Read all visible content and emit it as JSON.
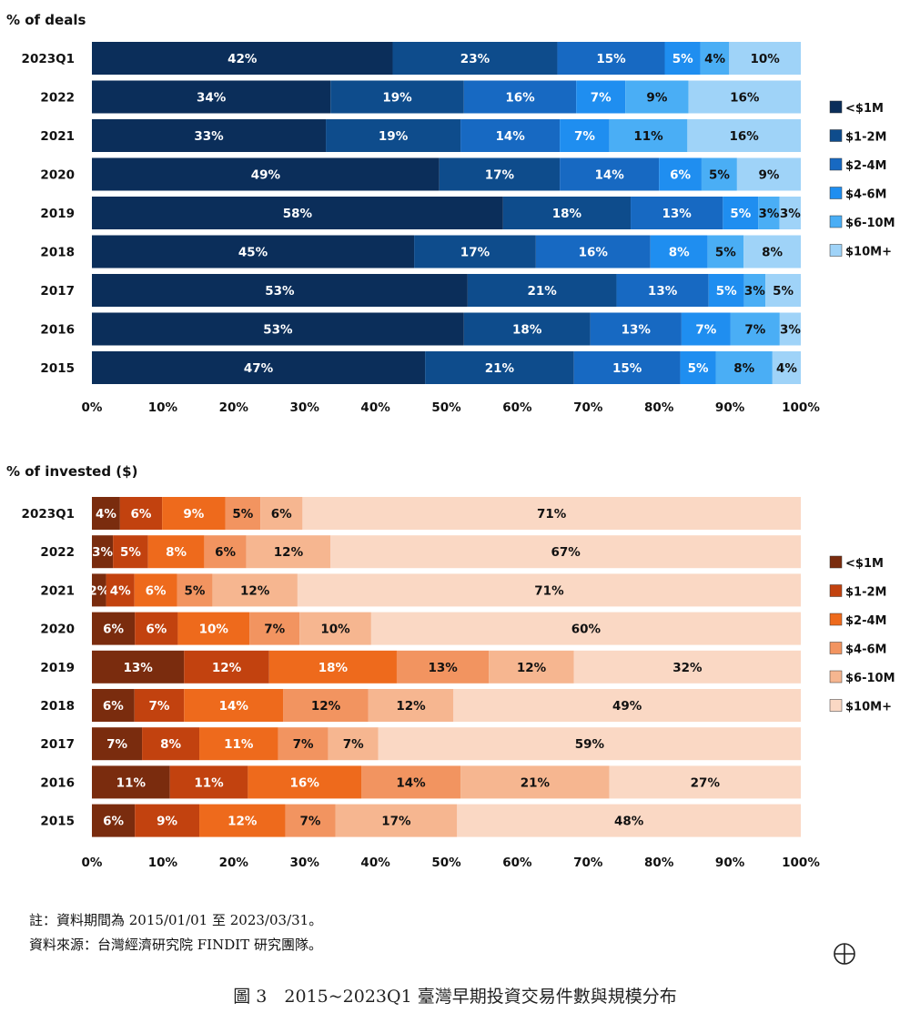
{
  "chart_data": [
    {
      "type": "bar",
      "orientation": "horizontal",
      "stacked": true,
      "title": "% of deals",
      "categories": [
        "2023Q1",
        "2022",
        "2021",
        "2020",
        "2019",
        "2018",
        "2017",
        "2016",
        "2015"
      ],
      "series": [
        {
          "name": "<$1M",
          "color": "#0b2e5a",
          "values": [
            42,
            34,
            33,
            49,
            58,
            45,
            53,
            53,
            47
          ]
        },
        {
          "name": "$1-2M",
          "color": "#0e4c8c",
          "values": [
            23,
            19,
            19,
            17,
            18,
            17,
            21,
            18,
            21
          ]
        },
        {
          "name": "$2-4M",
          "color": "#1769c2",
          "values": [
            15,
            16,
            14,
            14,
            13,
            16,
            13,
            13,
            15
          ]
        },
        {
          "name": "$4-6M",
          "color": "#1f8ef0",
          "values": [
            5,
            7,
            7,
            6,
            5,
            8,
            5,
            7,
            5
          ]
        },
        {
          "name": "$6-10M",
          "color": "#4aaef5",
          "values": [
            4,
            9,
            11,
            5,
            3,
            5,
            3,
            7,
            8
          ]
        },
        {
          "name": "$10M+",
          "color": "#9fd3f8",
          "values": [
            10,
            16,
            16,
            9,
            3,
            8,
            5,
            3,
            4
          ]
        }
      ],
      "xlim": [
        0,
        100
      ],
      "xticks": [
        "0%",
        "10%",
        "20%",
        "30%",
        "40%",
        "50%",
        "60%",
        "70%",
        "80%",
        "90%",
        "100%"
      ],
      "legend": "right",
      "grid": false
    },
    {
      "type": "bar",
      "orientation": "horizontal",
      "stacked": true,
      "title": "% of invested ($)",
      "categories": [
        "2023Q1",
        "2022",
        "2021",
        "2020",
        "2019",
        "2018",
        "2017",
        "2016",
        "2015"
      ],
      "series": [
        {
          "name": "<$1M",
          "color": "#7a2c0e",
          "values": [
            4,
            3,
            2,
            6,
            13,
            6,
            7,
            11,
            6
          ]
        },
        {
          "name": "$1-2M",
          "color": "#c2420f",
          "values": [
            6,
            5,
            4,
            6,
            12,
            7,
            8,
            11,
            9
          ]
        },
        {
          "name": "$2-4M",
          "color": "#ee6a1c",
          "values": [
            9,
            8,
            6,
            10,
            18,
            14,
            11,
            16,
            12
          ]
        },
        {
          "name": "$4-6M",
          "color": "#f29460",
          "values": [
            5,
            6,
            5,
            7,
            13,
            12,
            7,
            14,
            7
          ]
        },
        {
          "name": "$6-10M",
          "color": "#f6b690",
          "values": [
            6,
            12,
            12,
            10,
            12,
            12,
            7,
            21,
            17
          ]
        },
        {
          "name": "$10M+",
          "color": "#fad8c4",
          "values": [
            71,
            67,
            71,
            60,
            32,
            49,
            59,
            27,
            48
          ]
        }
      ],
      "xlim": [
        0,
        100
      ],
      "xticks": [
        "0%",
        "10%",
        "20%",
        "30%",
        "40%",
        "50%",
        "60%",
        "70%",
        "80%",
        "90%",
        "100%"
      ],
      "legend": "right",
      "grid": false
    }
  ],
  "notes": {
    "line1": "註：資料期間為 2015/01/01 至 2023/03/31。",
    "line2": "資料來源：台灣經濟研究院 FINDIT 研究團隊。"
  },
  "caption": "圖 3　2015~2023Q1 臺灣早期投資交易件數與規模分布"
}
